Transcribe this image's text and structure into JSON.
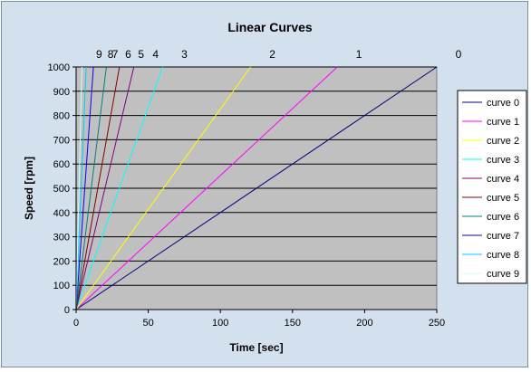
{
  "chart_data": {
    "type": "line",
    "title": "Linear Curves",
    "xlabel": "Time [sec]",
    "ylabel": "Speed [rpm]",
    "xlim": [
      0,
      250
    ],
    "ylim": [
      0,
      1000
    ],
    "x_ticks": [
      0,
      50,
      100,
      150,
      200,
      250
    ],
    "y_ticks": [
      0,
      100,
      200,
      300,
      400,
      500,
      600,
      700,
      800,
      900,
      1000
    ],
    "grid": "horizontal",
    "plot_background": "#c0c0c0",
    "legend_position": "right",
    "series": [
      {
        "name": "curve 0",
        "color": "#000080",
        "x": [
          0,
          250
        ],
        "y": [
          0,
          1000
        ],
        "end_label": "0"
      },
      {
        "name": "curve 1",
        "color": "#ff00ff",
        "x": [
          0,
          181
        ],
        "y": [
          0,
          1000
        ],
        "end_label": "1"
      },
      {
        "name": "curve 2",
        "color": "#ffff00",
        "x": [
          0,
          121
        ],
        "y": [
          0,
          1000
        ],
        "end_label": "2"
      },
      {
        "name": "curve 3",
        "color": "#00ffff",
        "x": [
          0,
          60
        ],
        "y": [
          0,
          1000
        ],
        "end_label": "3"
      },
      {
        "name": "curve 4",
        "color": "#800080",
        "x": [
          0,
          40
        ],
        "y": [
          0,
          1000
        ],
        "end_label": "4"
      },
      {
        "name": "curve 5",
        "color": "#800000",
        "x": [
          0,
          30
        ],
        "y": [
          0,
          1000
        ],
        "end_label": "5"
      },
      {
        "name": "curve 6",
        "color": "#008080",
        "x": [
          0,
          21
        ],
        "y": [
          0,
          1000
        ],
        "end_label": "6"
      },
      {
        "name": "curve 7",
        "color": "#0000ff",
        "x": [
          0,
          12
        ],
        "y": [
          0,
          1000
        ],
        "end_label": "7"
      },
      {
        "name": "curve 8",
        "color": "#00ccff",
        "x": [
          0,
          7
        ],
        "y": [
          0,
          1000
        ],
        "end_label": "8"
      },
      {
        "name": "curve 9",
        "color": "#ccffff",
        "x": [
          0,
          4
        ],
        "y": [
          0,
          1000
        ],
        "end_label": "9"
      }
    ]
  }
}
